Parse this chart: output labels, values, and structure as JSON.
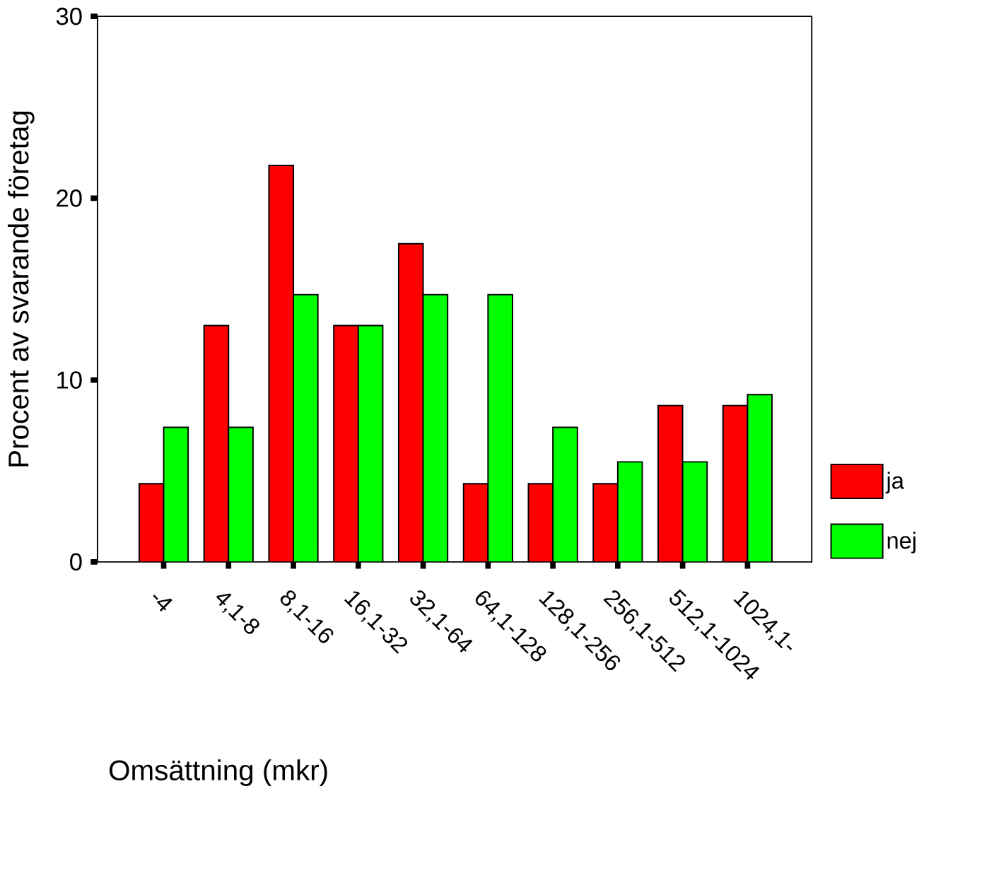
{
  "chart_data": {
    "type": "bar",
    "xlabel": "Omsättning (mkr)",
    "ylabel": "Procent av svarande företag",
    "categories": [
      "-4",
      "4,1-8",
      "8,1-16",
      "16,1-32",
      "32,1-64",
      "64,1-128",
      "128,1-256",
      "256,1-512",
      "512,1-1024",
      "1024,1-"
    ],
    "series": [
      {
        "name": "ja",
        "color": "#ff0000",
        "values": [
          4.3,
          13.0,
          21.8,
          13.0,
          17.5,
          4.3,
          4.3,
          4.3,
          8.6,
          8.6
        ]
      },
      {
        "name": "nej",
        "color": "#00ff00",
        "values": [
          7.4,
          7.4,
          14.7,
          13.0,
          14.7,
          14.7,
          7.4,
          5.5,
          5.5,
          9.2
        ]
      }
    ],
    "ylim": [
      0,
      30
    ],
    "yticks": [
      0,
      10,
      20,
      30
    ],
    "legend": "right"
  }
}
